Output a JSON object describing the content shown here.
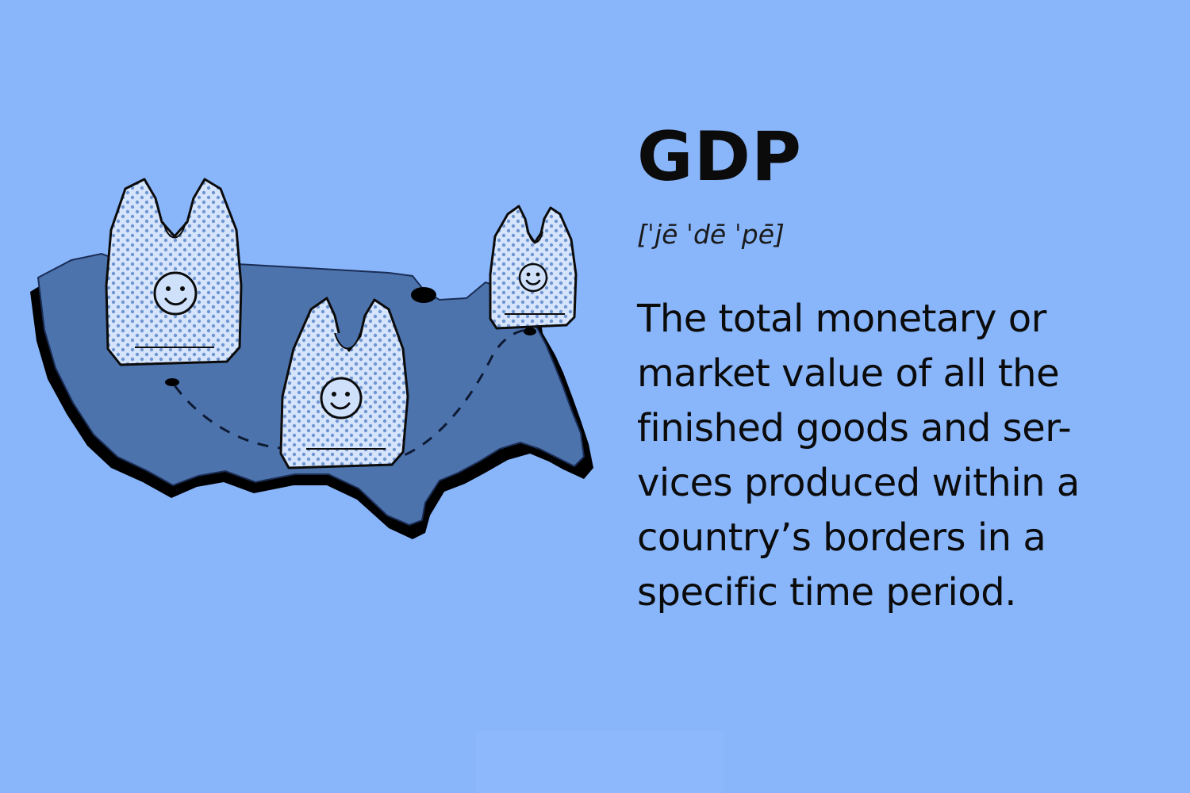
{
  "term": "GDP",
  "pronunciation": "[ˈjē ˈdē ˈpē]",
  "definition_lines": [
    "The total monetary or",
    "market value of all the",
    "finished goods and ser-",
    "vices produced within a",
    "country’s borders in a",
    "specific time period."
  ],
  "illustration": {
    "icon": "us-map-with-shopping-bags-icon",
    "bag_icon": "smiley-shopping-bag-icon"
  },
  "colors": {
    "background": "#89b6fb",
    "map_fill": "#4d73ad",
    "map_shadow": "#000000",
    "bag_fill": "#cfe0fb",
    "bag_dots": "#6f95d2",
    "text": "#0b0b0b"
  }
}
